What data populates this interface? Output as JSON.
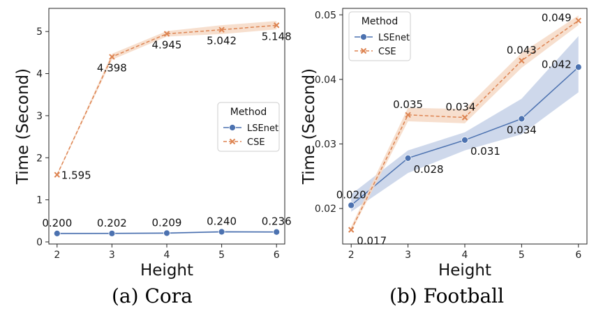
{
  "captions": {
    "a": "(a)  Cora",
    "b": "(b)  Football"
  },
  "colors": {
    "lsenet": "#4c72b0",
    "cse": "#dd8452",
    "lsenet_band": "#c5d1e8",
    "cse_band": "#f6d9c5"
  },
  "chart_data": [
    {
      "type": "line",
      "panel": "a",
      "xlabel": "Height",
      "ylabel": "Time (Second)",
      "x": [
        2,
        3,
        4,
        5,
        6
      ],
      "xlim": [
        1.85,
        6.15
      ],
      "ylim": [
        -0.05,
        5.55
      ],
      "yticks": [
        0,
        1,
        2,
        3,
        4,
        5
      ],
      "ytick_labels": [
        "0",
        "1",
        "2",
        "3",
        "4",
        "5"
      ],
      "xtick_labels": [
        "2",
        "3",
        "4",
        "5",
        "6"
      ],
      "legend": {
        "title": "Method",
        "placement": "center-right"
      },
      "series": [
        {
          "name": "LSEnet",
          "values": [
            0.2,
            0.202,
            0.209,
            0.24,
            0.236
          ],
          "lower": [
            0.18,
            0.185,
            0.19,
            0.22,
            0.22
          ],
          "upper": [
            0.22,
            0.22,
            0.23,
            0.26,
            0.255
          ],
          "labels": [
            "0.200",
            "0.202",
            "0.209",
            "0.240",
            "0.236"
          ],
          "label_pos": [
            "above",
            "above",
            "above",
            "above",
            "above"
          ]
        },
        {
          "name": "CSE",
          "values": [
            1.595,
            4.398,
            4.945,
            5.042,
            5.148
          ],
          "lower": [
            1.57,
            4.33,
            4.88,
            4.94,
            5.05
          ],
          "upper": [
            1.62,
            4.47,
            5.01,
            5.15,
            5.25
          ],
          "labels": [
            "1.595",
            "4.398",
            "4.945",
            "5.042",
            "5.148"
          ],
          "label_pos": [
            "right",
            "below",
            "below",
            "below",
            "below"
          ]
        }
      ]
    },
    {
      "type": "line",
      "panel": "b",
      "xlabel": "Height",
      "ylabel": "Time (Second)",
      "x": [
        2,
        3,
        4,
        5,
        6
      ],
      "xlim": [
        1.85,
        6.15
      ],
      "ylim": [
        0.0145,
        0.051
      ],
      "yticks": [
        0.02,
        0.03,
        0.04,
        0.05
      ],
      "ytick_labels": [
        "0.02",
        "0.03",
        "0.04",
        "0.05"
      ],
      "xtick_labels": [
        "2",
        "3",
        "4",
        "5",
        "6"
      ],
      "legend": {
        "title": "Method",
        "placement": "upper-left"
      },
      "series": [
        {
          "name": "LSEnet",
          "values": [
            0.0205,
            0.0278,
            0.0306,
            0.0339,
            0.0419
          ],
          "lower": [
            0.0195,
            0.0255,
            0.029,
            0.0315,
            0.038
          ],
          "upper": [
            0.0222,
            0.029,
            0.0318,
            0.037,
            0.0467
          ],
          "labels": [
            "0.020",
            "0.028",
            "0.031",
            "0.034",
            "0.042"
          ],
          "label_pos": [
            "above",
            "below-right",
            "below-right",
            "below",
            "left"
          ]
        },
        {
          "name": "CSE",
          "values": [
            0.0167,
            0.0345,
            0.0341,
            0.0429,
            0.0491
          ],
          "lower": [
            0.0164,
            0.0335,
            0.0332,
            0.0418,
            0.0484
          ],
          "upper": [
            0.0172,
            0.0356,
            0.0354,
            0.0441,
            0.0499
          ],
          "labels": [
            "0.017",
            "0.035",
            "0.034",
            "0.043",
            "0.049"
          ],
          "label_pos": [
            "below-right",
            "above",
            "above-left",
            "above",
            "left"
          ]
        }
      ]
    }
  ]
}
